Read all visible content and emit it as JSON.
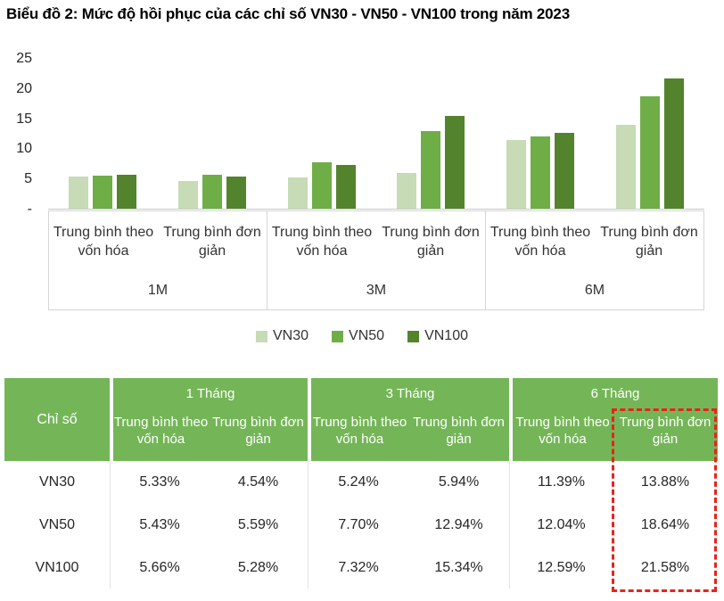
{
  "title": "Biểu đồ 2: Mức độ hồi phục của các chỉ số VN30 - VN50 - VN100 trong năm 2023",
  "chart_data": {
    "type": "bar",
    "title": "Mức độ hồi phục của các chỉ số VN30 - VN50 - VN100 trong năm 2023",
    "unit": "%",
    "ylim": [
      0,
      25
    ],
    "yticks": [
      "25",
      "20",
      "15",
      "10",
      "5",
      "-"
    ],
    "grid": false,
    "legend_position": "bottom",
    "series": [
      {
        "name": "VN30",
        "color": "#C6DBB6"
      },
      {
        "name": "VN50",
        "color": "#6FAE46"
      },
      {
        "name": "VN100",
        "color": "#54832D"
      }
    ],
    "periods": [
      {
        "label": "1M",
        "clusters": [
          {
            "label": "Trung bình theo vốn hóa",
            "values": [
              5.33,
              5.43,
              5.66
            ]
          },
          {
            "label": "Trung bình đơn giản",
            "values": [
              4.54,
              5.59,
              5.28
            ]
          }
        ]
      },
      {
        "label": "3M",
        "clusters": [
          {
            "label": "Trung bình theo vốn hóa",
            "values": [
              5.24,
              7.7,
              7.32
            ]
          },
          {
            "label": "Trung bình đơn giản",
            "values": [
              5.94,
              12.94,
              15.34
            ]
          }
        ]
      },
      {
        "label": "6M",
        "clusters": [
          {
            "label": "Trung bình theo vốn hóa",
            "values": [
              11.39,
              12.04,
              12.59
            ]
          },
          {
            "label": "Trung bình đơn giản",
            "values": [
              13.88,
              18.64,
              21.58
            ]
          }
        ]
      }
    ]
  },
  "table": {
    "index_header": "Chỉ số",
    "group_headers": [
      "1 Tháng",
      "3 Tháng",
      "6 Tháng"
    ],
    "sub_headers": [
      "Trung bình theo vốn hóa",
      "Trung bình đơn giản",
      "Trung bình theo vốn hóa",
      "Trung bình đơn giản",
      "Trung bình theo vốn hóa",
      "Trung bình đơn giản"
    ],
    "rows": [
      {
        "index": "VN30",
        "values": [
          "5.33%",
          "4.54%",
          "5.24%",
          "5.94%",
          "11.39%",
          "13.88%"
        ]
      },
      {
        "index": "VN50",
        "values": [
          "5.43%",
          "5.59%",
          "7.70%",
          "12.94%",
          "12.04%",
          "18.64%"
        ]
      },
      {
        "index": "VN100",
        "values": [
          "5.66%",
          "5.28%",
          "7.32%",
          "15.34%",
          "12.59%",
          "21.58%"
        ]
      }
    ],
    "header_color": "#74B657",
    "highlight_color": "#E8231A"
  }
}
